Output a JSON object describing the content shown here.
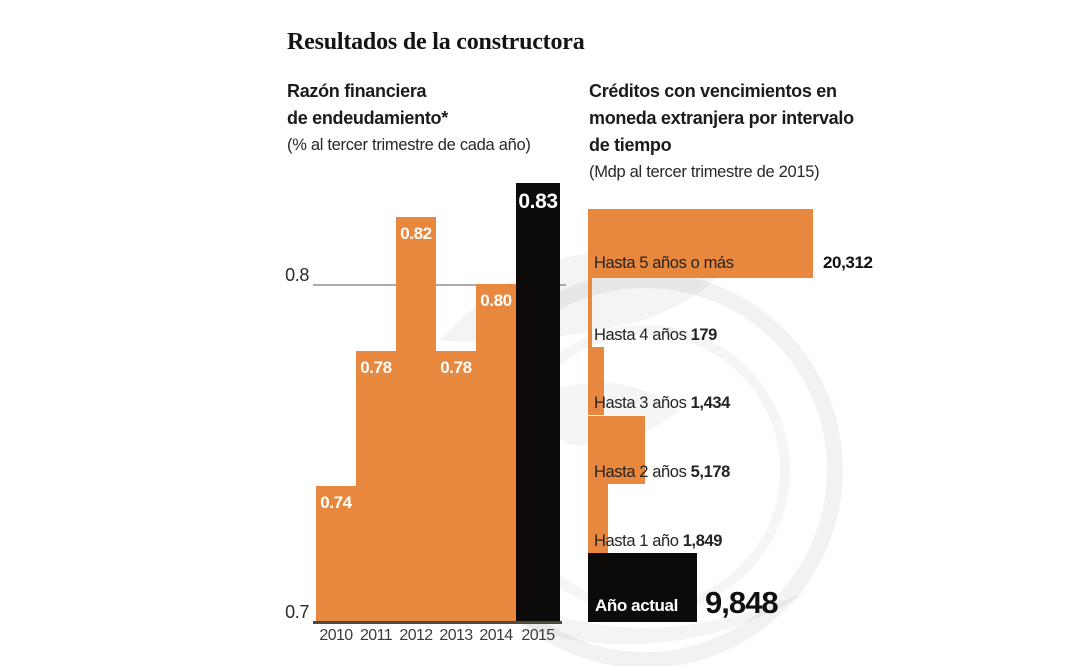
{
  "title": "Resultados de la constructora",
  "left": {
    "title_line1": "Razón financiera",
    "title_line2": "de endeudamiento*",
    "subtitle": "(% al tercer trimestre de cada año)"
  },
  "right": {
    "title_line1": "Créditos con vencimientos en",
    "title_line2": "moneda extranjera por intervalo",
    "title_line3": "de tiempo",
    "subtitle": "(Mdp al tercer trimestre de 2015)"
  },
  "colors": {
    "orange": "#E8883E",
    "black_bar": "#0C0B0A",
    "gridline": "#ACACAC",
    "baseline": "#4F4940",
    "text": "#262320",
    "white_label": "#FFFFFF"
  },
  "chart_data": [
    {
      "type": "bar",
      "title": "Razón financiera de endeudamiento*",
      "subtitle": "(% al tercer trimestre de cada año)",
      "categories": [
        "2010",
        "2011",
        "2012",
        "2013",
        "2014",
        "2015"
      ],
      "values": [
        0.74,
        0.78,
        0.82,
        0.78,
        0.8,
        0.83
      ],
      "value_labels": [
        "0.74",
        "0.78",
        "0.82",
        "0.78",
        "0.80",
        "0.83"
      ],
      "ylabel": "",
      "xlabel": "",
      "ylim": [
        0.7,
        0.84
      ],
      "axis_ticks": [
        {
          "label": "0.8",
          "value": 0.8
        },
        {
          "label": "0.7",
          "value": 0.7
        }
      ],
      "gridline_value": 0.8,
      "grid": "single horizontal line at 0.8",
      "highlight_index": 5,
      "bar_color": "#E8883E",
      "highlight_color": "#0C0B0A",
      "legend": "none"
    },
    {
      "type": "bar-horizontal",
      "title": "Créditos con vencimientos en moneda extranjera por intervalo de tiempo",
      "subtitle": "(Mdp al tercer trimestre de 2015)",
      "categories": [
        "Hasta 5 años o más",
        "Hasta 4 años",
        "Hasta 3 años",
        "Hasta 2 años",
        "Hasta 1 año",
        "Año actual"
      ],
      "values": [
        20312,
        179,
        1434,
        5178,
        1849,
        9848
      ],
      "value_labels": [
        "20,312",
        "179",
        "1,434",
        "5,178",
        "1,849",
        "9,848"
      ],
      "xlim": [
        0,
        20312
      ],
      "highlight_index": 5,
      "bar_color": "#E8883E",
      "highlight_color": "#0C0B0A",
      "grid": "off",
      "legend": "none"
    }
  ]
}
